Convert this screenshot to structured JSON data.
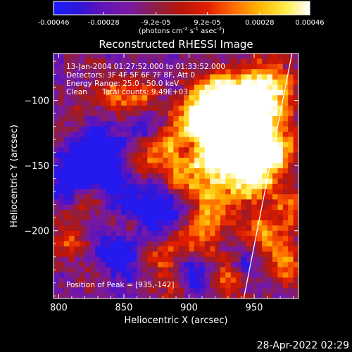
{
  "colorbar": {
    "tick_labels": [
      "-0.00046",
      "-0.00028",
      "-9.2e-05",
      "9.2e-05",
      "0.00028",
      "0.00046"
    ],
    "tick_values": [
      -0.00046,
      -0.00028,
      -9.2e-05,
      9.2e-05,
      0.00028,
      0.00046
    ],
    "range": [
      -0.00046,
      0.00046
    ],
    "units_main": "(photons cm",
    "units_exp1": "-2",
    "units_mid": " s",
    "units_exp2": "-1",
    "units_tail": " asec",
    "units_exp3": "-2",
    "units_close": ")",
    "colormap_stops": [
      "#1d1cff",
      "#2f16d8",
      "#6414b5",
      "#7a1aa0",
      "#8e1f44",
      "#b8160a",
      "#e21e00",
      "#ff6a00",
      "#ffb400",
      "#ffea40",
      "#ffffff"
    ]
  },
  "chart_data": {
    "type": "heatmap",
    "title": "Reconstructed RHESSI Image",
    "xlabel": "Heliocentric X (arcsec)",
    "ylabel": "Heliocentric Y (arcsec)",
    "xlim": [
      796,
      984
    ],
    "ylim": [
      -252,
      -64
    ],
    "x_ticks": [
      800,
      850,
      900,
      950
    ],
    "y_ticks": [
      -100,
      -150,
      -200
    ],
    "info_lines": [
      "13-Jan-2004 01:27:52.000 to 01:33:52.000",
      "Detectors: 3F 4F 5F 6F 7F 8F, Att 0",
      "Energy Range: 25.0 - 50.0 keV"
    ],
    "clean_label": "Clean",
    "total_counts_label": "Total counts: 9.49E+03",
    "peak_label": "Position of Peak = [935,-142]",
    "peak": [
      935,
      -142
    ],
    "limb_x_at_ymax": 979,
    "limb_x_at_ymin": 942,
    "peak_intensity_label": "0.00046"
  },
  "footer": {
    "timestamp": "28-Apr-2022 02:29"
  }
}
